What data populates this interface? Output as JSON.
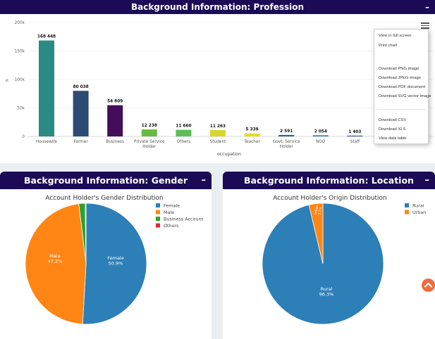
{
  "profession": {
    "header": "Background Information: Profession",
    "collapse": "–",
    "menu": {
      "items": [
        "View in full screen",
        "Print chart",
        "Download PNG image",
        "Download JPEG image",
        "Download PDF document",
        "Download SVG vector image",
        "Download CSV",
        "Download XLS",
        "View data table"
      ]
    }
  },
  "gender": {
    "header": "Background Information: Gender",
    "collapse": "–"
  },
  "location": {
    "header": "Background Information: Location",
    "collapse": "–"
  },
  "chart_data": [
    {
      "type": "bar",
      "title": "",
      "xlabel": "occupation",
      "ylabel": "n",
      "ylim": [
        0,
        200000
      ],
      "yticks": [
        "0",
        "50k",
        "100k",
        "150k",
        "200k"
      ],
      "yticks_values": [
        0,
        50000,
        100000,
        150000,
        200000
      ],
      "grid": true,
      "categories": [
        "Housewife",
        "Farmer",
        "Business",
        "Private Service Holder",
        "Others",
        "Student",
        "Teacher",
        "Govt. Service Holder",
        "NGO",
        "Staff"
      ],
      "values": [
        168448,
        80038,
        54809,
        12238,
        11660,
        11263,
        5339,
        2591,
        2054,
        1403
      ],
      "labels": [
        "168 448",
        "80 038",
        "54 809",
        "12 238",
        "11 660",
        "11 263",
        "5 339",
        "2 591",
        "2 054",
        "1 403"
      ],
      "colors": [
        "#2a8b84",
        "#2d4a73",
        "#430d5a",
        "#6ab845",
        "#5dbc55",
        "#d6d62d",
        "#e2dc26",
        "#2e5d8c",
        "#25889a",
        "#3b4b8a"
      ]
    },
    {
      "type": "pie",
      "title": "Account Holder's Gender Distribution",
      "labels": [
        "Female",
        "Male",
        "Business Account",
        "Others"
      ],
      "values": [
        50.9,
        47.2,
        1.7,
        0.2
      ],
      "slice_labels": [
        "Female\n50.9%",
        "Male\n47.2%",
        "",
        ""
      ],
      "colors": [
        "#2d7fb8",
        "#ff8514",
        "#2fa02f",
        "#d32f2f"
      ],
      "legend": "top-right"
    },
    {
      "type": "pie",
      "title": "Account Holder's Origin Distribution",
      "labels": [
        "Rural",
        "Urban"
      ],
      "values": [
        96.3,
        3.7
      ],
      "slice_labels": [
        "Rural\n96.3%",
        "Urban\n3.7%"
      ],
      "colors": [
        "#2d7fb8",
        "#ff8514"
      ],
      "legend": "top-right"
    }
  ]
}
